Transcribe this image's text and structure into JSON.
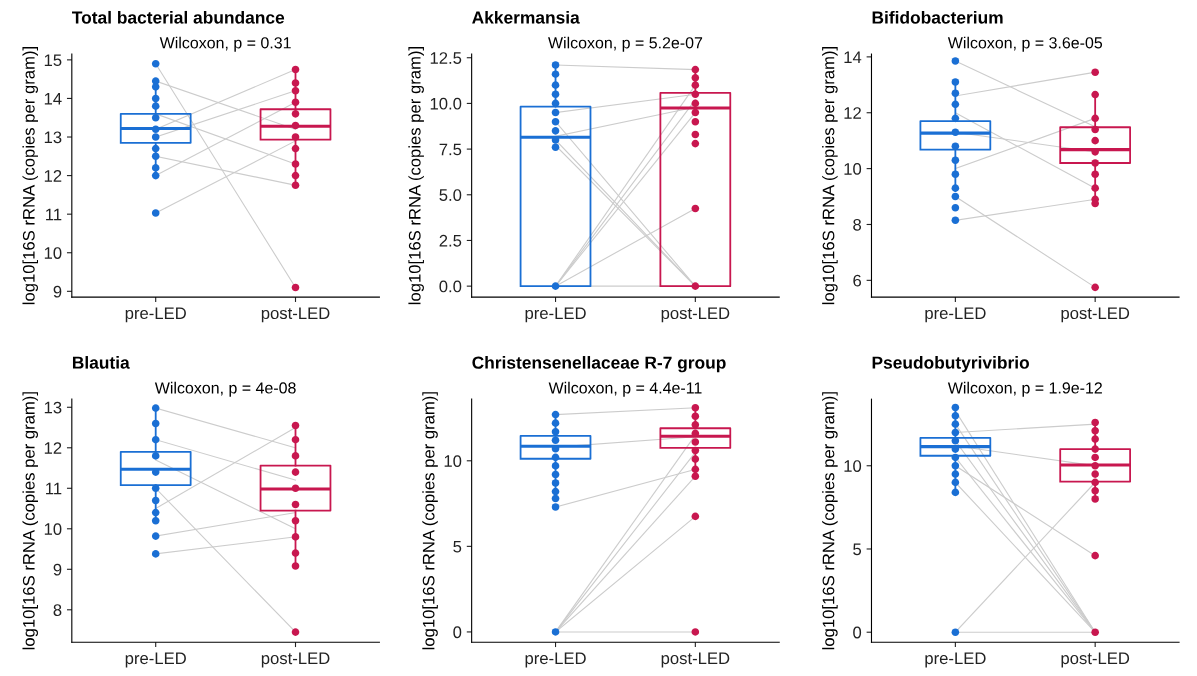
{
  "chart_data": [
    {
      "type": "box",
      "title": "Total bacterial abundance",
      "ylabel": "log10[16S rRNA (copies per gram)]",
      "categories": [
        "pre-LED",
        "post-LED"
      ],
      "colors": [
        "#1a6fd4",
        "#c8174f"
      ],
      "boxes": [
        {
          "low": 12.0,
          "q1": 12.85,
          "median": 13.22,
          "q3": 13.6,
          "high": 14.45
        },
        {
          "low": 11.75,
          "q1": 12.93,
          "median": 13.28,
          "q3": 13.72,
          "high": 14.75
        }
      ],
      "ylim": [
        8.85,
        15.15
      ],
      "yticks": [
        9,
        10,
        11,
        12,
        13,
        14,
        15
      ],
      "annotations": [
        "Wilcoxon, p = 0.31"
      ],
      "series": [
        {
          "type": "line",
          "x": [
            "pre-LED",
            "post-LED"
          ],
          "values": [
            14.9,
            9.1
          ],
          "color": "#cccccc"
        },
        {
          "type": "line",
          "x": [
            "pre-LED",
            "post-LED"
          ],
          "values": [
            11.03,
            12.9
          ],
          "color": "#cccccc"
        },
        {
          "type": "line",
          "x": [
            "pre-LED",
            "post-LED"
          ],
          "values": [
            14.45,
            13.2
          ],
          "color": "#cccccc"
        },
        {
          "type": "line",
          "x": [
            "pre-LED",
            "post-LED"
          ],
          "values": [
            12.0,
            13.9
          ],
          "color": "#cccccc"
        },
        {
          "type": "line",
          "x": [
            "pre-LED",
            "post-LED"
          ],
          "values": [
            13.2,
            14.75
          ],
          "color": "#cccccc"
        },
        {
          "type": "line",
          "x": [
            "pre-LED",
            "post-LED"
          ],
          "values": [
            12.5,
            11.75
          ],
          "color": "#cccccc"
        },
        {
          "type": "line",
          "x": [
            "pre-LED",
            "post-LED"
          ],
          "values": [
            13.6,
            12.3
          ],
          "color": "#cccccc"
        },
        {
          "type": "line",
          "x": [
            "pre-LED",
            "post-LED"
          ],
          "values": [
            13.0,
            14.2
          ],
          "color": "#cccccc"
        },
        {
          "type": "scatter",
          "x": [
            "pre-LED",
            "pre-LED",
            "pre-LED",
            "pre-LED",
            "pre-LED",
            "pre-LED",
            "pre-LED",
            "pre-LED",
            "pre-LED",
            "pre-LED",
            "pre-LED",
            "pre-LED",
            "pre-LED"
          ],
          "values": [
            14.9,
            14.45,
            14.3,
            14.0,
            13.8,
            13.5,
            13.2,
            13.0,
            12.7,
            12.5,
            12.2,
            12.0,
            11.03
          ],
          "color": "#1a6fd4"
        },
        {
          "type": "scatter",
          "x": [
            "post-LED",
            "post-LED",
            "post-LED",
            "post-LED",
            "post-LED",
            "post-LED",
            "post-LED",
            "post-LED",
            "post-LED",
            "post-LED",
            "post-LED",
            "post-LED"
          ],
          "values": [
            14.75,
            14.4,
            14.2,
            13.9,
            13.6,
            13.3,
            13.0,
            12.7,
            12.3,
            12.0,
            11.75,
            9.1
          ],
          "color": "#c8174f"
        }
      ]
    },
    {
      "type": "box",
      "title": "Akkermansia",
      "ylabel": "log10[16S rRNA (copies per gram)]",
      "categories": [
        "pre-LED",
        "post-LED"
      ],
      "colors": [
        "#1a6fd4",
        "#c8174f"
      ],
      "boxes": [
        {
          "low": 0,
          "q1": 0,
          "median": 8.15,
          "q3": 9.82,
          "high": 12.1
        },
        {
          "low": 0,
          "q1": 0,
          "median": 9.75,
          "q3": 10.58,
          "high": 11.85
        }
      ],
      "ylim": [
        -0.6,
        12.7
      ],
      "yticks": [
        {
          "value": 0,
          "label": "0.0"
        },
        2.5,
        {
          "value": 5,
          "label": "5.0"
        },
        7.5,
        {
          "value": 10,
          "label": "10.0"
        },
        12.5
      ],
      "annotations": [
        "Wilcoxon, p = 5.2e-07"
      ],
      "series": [
        {
          "type": "line",
          "x": [
            "pre-LED",
            "post-LED"
          ],
          "values": [
            0,
            11.0
          ],
          "color": "#cccccc"
        },
        {
          "type": "line",
          "x": [
            "pre-LED",
            "post-LED"
          ],
          "values": [
            0,
            10.2
          ],
          "color": "#cccccc"
        },
        {
          "type": "line",
          "x": [
            "pre-LED",
            "post-LED"
          ],
          "values": [
            0,
            9.5
          ],
          "color": "#cccccc"
        },
        {
          "type": "line",
          "x": [
            "pre-LED",
            "post-LED"
          ],
          "values": [
            0,
            4.25
          ],
          "color": "#cccccc"
        },
        {
          "type": "line",
          "x": [
            "pre-LED",
            "post-LED"
          ],
          "values": [
            0,
            0
          ],
          "color": "#cccccc"
        },
        {
          "type": "line",
          "x": [
            "pre-LED",
            "post-LED"
          ],
          "values": [
            9.0,
            0
          ],
          "color": "#cccccc"
        },
        {
          "type": "line",
          "x": [
            "pre-LED",
            "post-LED"
          ],
          "values": [
            8.0,
            0
          ],
          "color": "#cccccc"
        },
        {
          "type": "line",
          "x": [
            "pre-LED",
            "post-LED"
          ],
          "values": [
            7.7,
            0
          ],
          "color": "#cccccc"
        },
        {
          "type": "line",
          "x": [
            "pre-LED",
            "post-LED"
          ],
          "values": [
            12.1,
            11.85
          ],
          "color": "#cccccc"
        },
        {
          "type": "line",
          "x": [
            "pre-LED",
            "post-LED"
          ],
          "values": [
            9.5,
            10.5
          ],
          "color": "#cccccc"
        },
        {
          "type": "line",
          "x": [
            "pre-LED",
            "post-LED"
          ],
          "values": [
            8.2,
            9.8
          ],
          "color": "#cccccc"
        },
        {
          "type": "scatter",
          "x": [
            "pre-LED",
            "pre-LED",
            "pre-LED",
            "pre-LED",
            "pre-LED",
            "pre-LED",
            "pre-LED",
            "pre-LED",
            "pre-LED",
            "pre-LED",
            "pre-LED"
          ],
          "values": [
            12.1,
            11.6,
            11.0,
            10.5,
            10.0,
            9.5,
            9.0,
            8.5,
            8.0,
            7.6,
            0
          ],
          "color": "#1a6fd4"
        },
        {
          "type": "scatter",
          "x": [
            "post-LED",
            "post-LED",
            "post-LED",
            "post-LED",
            "post-LED",
            "post-LED",
            "post-LED",
            "post-LED",
            "post-LED",
            "post-LED",
            "post-LED"
          ],
          "values": [
            11.85,
            11.4,
            11.0,
            10.5,
            10.0,
            9.5,
            9.0,
            8.3,
            7.8,
            4.25,
            0
          ],
          "color": "#c8174f"
        }
      ]
    },
    {
      "type": "box",
      "title": "Bifidobacterium",
      "ylabel": "log10[16S rRNA (copies per gram)]",
      "categories": [
        "pre-LED",
        "post-LED"
      ],
      "colors": [
        "#1a6fd4",
        "#c8174f"
      ],
      "boxes": [
        {
          "low": 9.2,
          "q1": 10.68,
          "median": 11.27,
          "q3": 11.7,
          "high": 13.1
        },
        {
          "low": 8.75,
          "q1": 10.2,
          "median": 10.68,
          "q3": 11.48,
          "high": 12.7
        }
      ],
      "ylim": [
        5.4,
        14.1
      ],
      "yticks": [
        6,
        8,
        10,
        12,
        14
      ],
      "annotations": [
        "Wilcoxon, p = 3.6e-05"
      ],
      "series": [
        {
          "type": "line",
          "x": [
            "pre-LED",
            "post-LED"
          ],
          "values": [
            13.85,
            11.5
          ],
          "color": "#cccccc"
        },
        {
          "type": "line",
          "x": [
            "pre-LED",
            "post-LED"
          ],
          "values": [
            9.0,
            5.75
          ],
          "color": "#cccccc"
        },
        {
          "type": "line",
          "x": [
            "pre-LED",
            "post-LED"
          ],
          "values": [
            8.15,
            8.9
          ],
          "color": "#cccccc"
        },
        {
          "type": "line",
          "x": [
            "pre-LED",
            "post-LED"
          ],
          "values": [
            12.6,
            13.45
          ],
          "color": "#cccccc"
        },
        {
          "type": "line",
          "x": [
            "pre-LED",
            "post-LED"
          ],
          "values": [
            11.3,
            10.6
          ],
          "color": "#cccccc"
        },
        {
          "type": "line",
          "x": [
            "pre-LED",
            "post-LED"
          ],
          "values": [
            10.0,
            11.8
          ],
          "color": "#cccccc"
        },
        {
          "type": "line",
          "x": [
            "pre-LED",
            "post-LED"
          ],
          "values": [
            12.0,
            9.3
          ],
          "color": "#cccccc"
        },
        {
          "type": "scatter",
          "x": [
            "pre-LED",
            "pre-LED",
            "pre-LED",
            "pre-LED",
            "pre-LED",
            "pre-LED",
            "pre-LED",
            "pre-LED",
            "pre-LED",
            "pre-LED",
            "pre-LED",
            "pre-LED",
            "pre-LED"
          ],
          "values": [
            13.85,
            13.1,
            12.7,
            12.3,
            11.8,
            11.3,
            10.8,
            10.3,
            9.8,
            9.3,
            9.0,
            8.6,
            8.15
          ],
          "color": "#1a6fd4"
        },
        {
          "type": "scatter",
          "x": [
            "post-LED",
            "post-LED",
            "post-LED",
            "post-LED",
            "post-LED",
            "post-LED",
            "post-LED",
            "post-LED",
            "post-LED",
            "post-LED",
            "post-LED",
            "post-LED"
          ],
          "values": [
            13.45,
            12.65,
            11.8,
            11.4,
            11.0,
            10.6,
            10.2,
            9.8,
            9.3,
            8.9,
            8.75,
            5.75
          ],
          "color": "#c8174f"
        }
      ]
    },
    {
      "type": "box",
      "title": "Blautia",
      "ylabel": "log10[16S rRNA (copies per gram)]",
      "categories": [
        "pre-LED",
        "post-LED"
      ],
      "colors": [
        "#1a6fd4",
        "#c8174f"
      ],
      "boxes": [
        {
          "low": 10.2,
          "q1": 11.08,
          "median": 11.47,
          "q3": 11.9,
          "high": 12.98
        },
        {
          "low": 9.08,
          "q1": 10.45,
          "median": 10.98,
          "q3": 11.56,
          "high": 12.55
        }
      ],
      "ylim": [
        7.2,
        13.2
      ],
      "yticks": [
        8,
        9,
        10,
        11,
        12,
        13
      ],
      "annotations": [
        "Wilcoxon, p = 4e-08"
      ],
      "series": [
        {
          "type": "line",
          "x": [
            "pre-LED",
            "post-LED"
          ],
          "values": [
            11.0,
            7.45
          ],
          "color": "#cccccc"
        },
        {
          "type": "line",
          "x": [
            "pre-LED",
            "post-LED"
          ],
          "values": [
            9.38,
            9.8
          ],
          "color": "#cccccc"
        },
        {
          "type": "line",
          "x": [
            "pre-LED",
            "post-LED"
          ],
          "values": [
            9.82,
            10.4
          ],
          "color": "#cccccc"
        },
        {
          "type": "line",
          "x": [
            "pre-LED",
            "post-LED"
          ],
          "values": [
            12.98,
            12.0
          ],
          "color": "#cccccc"
        },
        {
          "type": "line",
          "x": [
            "pre-LED",
            "post-LED"
          ],
          "values": [
            11.7,
            10.0
          ],
          "color": "#cccccc"
        },
        {
          "type": "line",
          "x": [
            "pre-LED",
            "post-LED"
          ],
          "values": [
            10.5,
            12.5
          ],
          "color": "#cccccc"
        },
        {
          "type": "line",
          "x": [
            "pre-LED",
            "post-LED"
          ],
          "values": [
            12.2,
            11.2
          ],
          "color": "#cccccc"
        },
        {
          "type": "scatter",
          "x": [
            "pre-LED",
            "pre-LED",
            "pre-LED",
            "pre-LED",
            "pre-LED",
            "pre-LED",
            "pre-LED",
            "pre-LED",
            "pre-LED",
            "pre-LED",
            "pre-LED"
          ],
          "values": [
            12.98,
            12.6,
            12.2,
            11.8,
            11.4,
            11.0,
            10.7,
            10.4,
            10.2,
            9.82,
            9.38
          ],
          "color": "#1a6fd4"
        },
        {
          "type": "scatter",
          "x": [
            "post-LED",
            "post-LED",
            "post-LED",
            "post-LED",
            "post-LED",
            "post-LED",
            "post-LED",
            "post-LED",
            "post-LED",
            "post-LED",
            "post-LED"
          ],
          "values": [
            12.55,
            12.2,
            11.8,
            11.4,
            11.0,
            10.6,
            10.2,
            9.8,
            9.4,
            9.08,
            7.45
          ],
          "color": "#c8174f"
        }
      ]
    },
    {
      "type": "box",
      "title": "Christensenellaceae R-7 group",
      "ylabel": "log10[16S rRNA (copies per gram)]",
      "categories": [
        "pre-LED",
        "post-LED"
      ],
      "colors": [
        "#1a6fd4",
        "#c8174f"
      ],
      "boxes": [
        {
          "low": 8.3,
          "q1": 10.12,
          "median": 10.85,
          "q3": 11.45,
          "high": 12.7
        },
        {
          "low": 9.1,
          "q1": 10.75,
          "median": 11.43,
          "q3": 11.9,
          "high": 13.1
        }
      ],
      "ylim": [
        -0.6,
        13.6
      ],
      "yticks": [
        0,
        5,
        10
      ],
      "annotations": [
        "Wilcoxon, p = 4.4e-11"
      ],
      "series": [
        {
          "type": "line",
          "x": [
            "pre-LED",
            "post-LED"
          ],
          "values": [
            0,
            11.5
          ],
          "color": "#cccccc"
        },
        {
          "type": "line",
          "x": [
            "pre-LED",
            "post-LED"
          ],
          "values": [
            0,
            10.5
          ],
          "color": "#cccccc"
        },
        {
          "type": "line",
          "x": [
            "pre-LED",
            "post-LED"
          ],
          "values": [
            0,
            9.1
          ],
          "color": "#cccccc"
        },
        {
          "type": "line",
          "x": [
            "pre-LED",
            "post-LED"
          ],
          "values": [
            0,
            6.75
          ],
          "color": "#cccccc"
        },
        {
          "type": "line",
          "x": [
            "pre-LED",
            "post-LED"
          ],
          "values": [
            0,
            0
          ],
          "color": "#cccccc"
        },
        {
          "type": "line",
          "x": [
            "pre-LED",
            "post-LED"
          ],
          "values": [
            7.3,
            9.5
          ],
          "color": "#cccccc"
        },
        {
          "type": "line",
          "x": [
            "pre-LED",
            "post-LED"
          ],
          "values": [
            12.7,
            13.1
          ],
          "color": "#cccccc"
        },
        {
          "type": "line",
          "x": [
            "pre-LED",
            "post-LED"
          ],
          "values": [
            10.8,
            11.4
          ],
          "color": "#cccccc"
        },
        {
          "type": "scatter",
          "x": [
            "pre-LED",
            "pre-LED",
            "pre-LED",
            "pre-LED",
            "pre-LED",
            "pre-LED",
            "pre-LED",
            "pre-LED",
            "pre-LED",
            "pre-LED",
            "pre-LED",
            "pre-LED",
            "pre-LED"
          ],
          "values": [
            12.7,
            12.2,
            11.7,
            11.2,
            10.7,
            10.2,
            9.7,
            9.2,
            8.7,
            8.2,
            7.8,
            7.3,
            0
          ],
          "color": "#1a6fd4"
        },
        {
          "type": "scatter",
          "x": [
            "post-LED",
            "post-LED",
            "post-LED",
            "post-LED",
            "post-LED",
            "post-LED",
            "post-LED",
            "post-LED",
            "post-LED",
            "post-LED",
            "post-LED"
          ],
          "values": [
            13.1,
            12.6,
            12.1,
            11.6,
            11.1,
            10.6,
            10.1,
            9.5,
            9.1,
            6.75,
            0
          ],
          "color": "#c8174f"
        }
      ]
    },
    {
      "type": "box",
      "title": "Pseudobutyrivibrio",
      "ylabel": "log10[16S rRNA (copies per gram)]",
      "categories": [
        "pre-LED",
        "post-LED"
      ],
      "colors": [
        "#1a6fd4",
        "#c8174f"
      ],
      "boxes": [
        {
          "low": 8.5,
          "q1": 10.6,
          "median": 11.15,
          "q3": 11.68,
          "high": 13.3
        },
        {
          "low": 8.0,
          "q1": 9.05,
          "median": 10.05,
          "q3": 11.0,
          "high": 12.6
        }
      ],
      "ylim": [
        -0.6,
        14.0
      ],
      "yticks": [
        0,
        5,
        10
      ],
      "annotations": [
        "Wilcoxon, p = 1.9e-12"
      ],
      "series": [
        {
          "type": "line",
          "x": [
            "pre-LED",
            "post-LED"
          ],
          "values": [
            13.3,
            0
          ],
          "color": "#cccccc"
        },
        {
          "type": "line",
          "x": [
            "pre-LED",
            "post-LED"
          ],
          "values": [
            12.5,
            0
          ],
          "color": "#cccccc"
        },
        {
          "type": "line",
          "x": [
            "pre-LED",
            "post-LED"
          ],
          "values": [
            11.5,
            0
          ],
          "color": "#cccccc"
        },
        {
          "type": "line",
          "x": [
            "pre-LED",
            "post-LED"
          ],
          "values": [
            10.5,
            0
          ],
          "color": "#cccccc"
        },
        {
          "type": "line",
          "x": [
            "pre-LED",
            "post-LED"
          ],
          "values": [
            9.0,
            0
          ],
          "color": "#cccccc"
        },
        {
          "type": "line",
          "x": [
            "pre-LED",
            "post-LED"
          ],
          "values": [
            0,
            9.0
          ],
          "color": "#cccccc"
        },
        {
          "type": "line",
          "x": [
            "pre-LED",
            "post-LED"
          ],
          "values": [
            0,
            0
          ],
          "color": "#cccccc"
        },
        {
          "type": "line",
          "x": [
            "pre-LED",
            "post-LED"
          ],
          "values": [
            10.0,
            4.6
          ],
          "color": "#cccccc"
        },
        {
          "type": "line",
          "x": [
            "pre-LED",
            "post-LED"
          ],
          "values": [
            11.2,
            10.0
          ],
          "color": "#cccccc"
        },
        {
          "type": "line",
          "x": [
            "pre-LED",
            "post-LED"
          ],
          "values": [
            12.0,
            12.5
          ],
          "color": "#cccccc"
        },
        {
          "type": "scatter",
          "x": [
            "pre-LED",
            "pre-LED",
            "pre-LED",
            "pre-LED",
            "pre-LED",
            "pre-LED",
            "pre-LED",
            "pre-LED",
            "pre-LED",
            "pre-LED",
            "pre-LED",
            "pre-LED"
          ],
          "values": [
            13.5,
            13.0,
            12.5,
            12.0,
            11.5,
            11.0,
            10.5,
            10.0,
            9.5,
            9.0,
            8.4,
            0
          ],
          "color": "#1a6fd4"
        },
        {
          "type": "scatter",
          "x": [
            "post-LED",
            "post-LED",
            "post-LED",
            "post-LED",
            "post-LED",
            "post-LED",
            "post-LED",
            "post-LED",
            "post-LED",
            "post-LED",
            "post-LED",
            "post-LED"
          ],
          "values": [
            12.6,
            12.1,
            11.6,
            11.0,
            10.5,
            10.0,
            9.5,
            9.0,
            8.5,
            8.0,
            4.6,
            0
          ],
          "color": "#c8174f"
        }
      ]
    }
  ]
}
